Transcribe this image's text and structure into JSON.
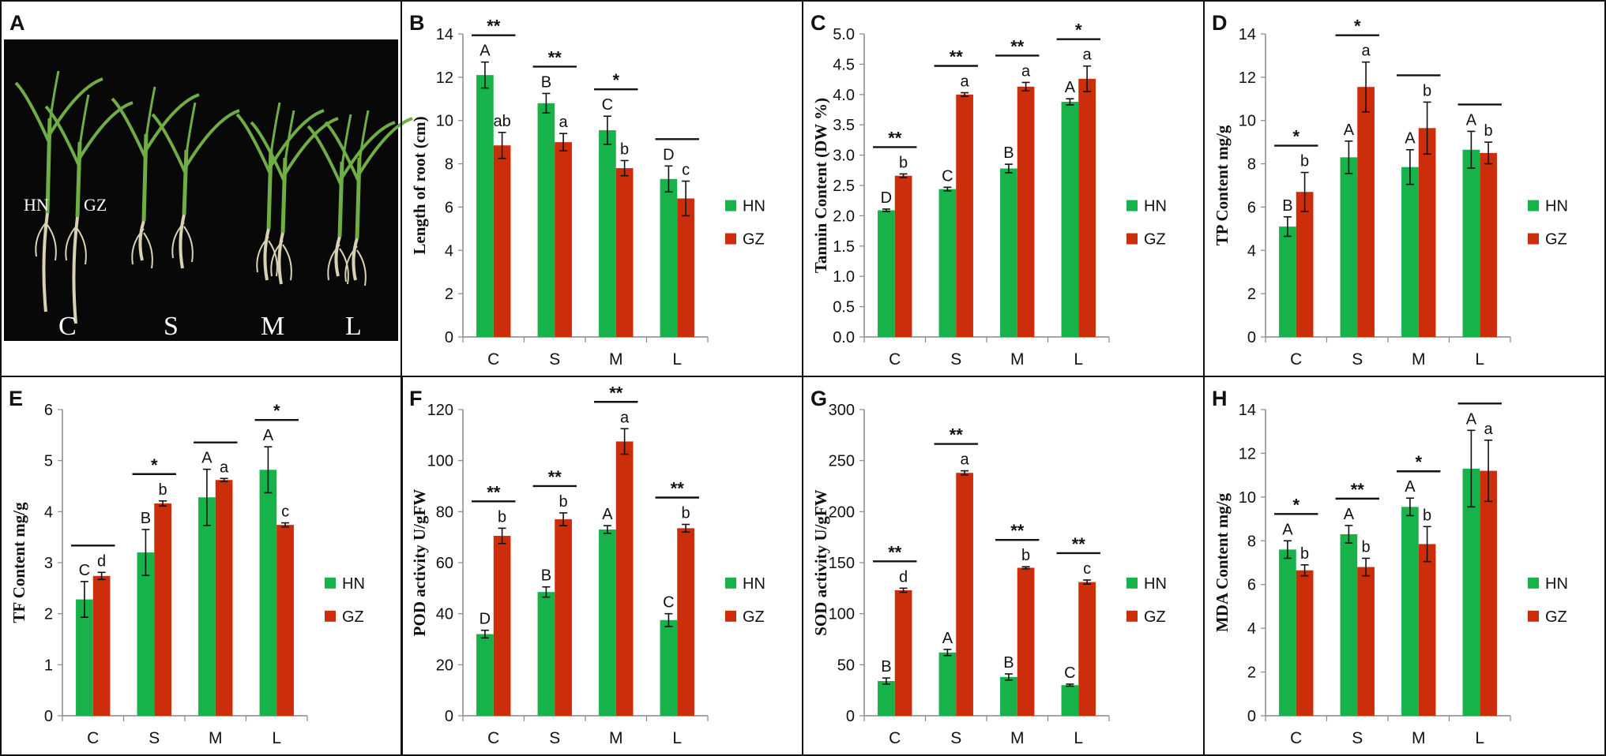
{
  "colors": {
    "hn": "#18b24b",
    "gz": "#cc2d0a",
    "photo_bg": "#080808",
    "leaf": "#6fae45",
    "root": "#d8d2b4"
  },
  "photo_panel": {
    "letter": "A",
    "labels": [
      "C",
      "S",
      "M",
      "L"
    ],
    "cultivars": [
      "HN",
      "GZ"
    ]
  },
  "legend": {
    "hn": "HN",
    "gz": "GZ"
  },
  "chart_data": [
    {
      "panel": "B",
      "type": "bar",
      "categories": [
        "C",
        "S",
        "M",
        "L"
      ],
      "ylabel": "Length of root (cm)",
      "ylim": [
        0,
        14
      ],
      "ytick_step": 2,
      "ytick_decimals": 0,
      "series": [
        {
          "name": "HN",
          "values": [
            12.1,
            10.8,
            9.55,
            7.3
          ],
          "errors": [
            0.6,
            0.45,
            0.65,
            0.6
          ],
          "letters": [
            "A",
            "B",
            "C",
            "D"
          ]
        },
        {
          "name": "GZ",
          "values": [
            8.85,
            9.0,
            7.8,
            6.4
          ],
          "errors": [
            0.6,
            0.4,
            0.35,
            0.8
          ],
          "letters": [
            "ab",
            "a",
            "b",
            "c"
          ]
        }
      ],
      "significance": [
        "**",
        "**",
        "*",
        ""
      ]
    },
    {
      "panel": "C",
      "type": "bar",
      "categories": [
        "C",
        "S",
        "M",
        "L"
      ],
      "ylabel": "Tannin Content (DW %)",
      "ylim": [
        0,
        5
      ],
      "ytick_step": 0.5,
      "ytick_decimals": 1,
      "series": [
        {
          "name": "HN",
          "values": [
            2.09,
            2.44,
            2.78,
            3.88
          ],
          "errors": [
            0.02,
            0.03,
            0.07,
            0.05
          ],
          "letters": [
            "D",
            "C",
            "B",
            "A"
          ]
        },
        {
          "name": "GZ",
          "values": [
            2.66,
            4.0,
            4.13,
            4.26
          ],
          "errors": [
            0.03,
            0.03,
            0.07,
            0.21
          ],
          "letters": [
            "b",
            "a",
            "a",
            "a"
          ]
        }
      ],
      "significance": [
        "**",
        "**",
        "**",
        "*"
      ]
    },
    {
      "panel": "D",
      "type": "bar",
      "categories": [
        "C",
        "S",
        "M",
        "L"
      ],
      "ylabel": "TP Content mg/g",
      "ylim": [
        0,
        14
      ],
      "ytick_step": 2,
      "ytick_decimals": 0,
      "series": [
        {
          "name": "HN",
          "values": [
            5.1,
            8.3,
            7.85,
            8.65
          ],
          "errors": [
            0.45,
            0.75,
            0.8,
            0.85
          ],
          "letters": [
            "B",
            "A",
            "A",
            "A"
          ]
        },
        {
          "name": "GZ",
          "values": [
            6.7,
            11.55,
            9.65,
            8.5
          ],
          "errors": [
            0.9,
            1.15,
            1.2,
            0.5
          ],
          "letters": [
            "b",
            "a",
            "b",
            "b"
          ]
        }
      ],
      "significance": [
        "*",
        "*",
        "",
        ""
      ]
    },
    {
      "panel": "E",
      "type": "bar",
      "categories": [
        "C",
        "S",
        "M",
        "L"
      ],
      "ylabel": "TF Content mg/g",
      "ylim": [
        0,
        6
      ],
      "ytick_step": 1,
      "ytick_decimals": 0,
      "series": [
        {
          "name": "HN",
          "values": [
            2.28,
            3.2,
            4.28,
            4.82
          ],
          "errors": [
            0.35,
            0.45,
            0.55,
            0.45
          ],
          "letters": [
            "C",
            "B",
            "A",
            "A"
          ]
        },
        {
          "name": "GZ",
          "values": [
            2.74,
            4.16,
            4.62,
            3.74
          ],
          "errors": [
            0.07,
            0.05,
            0.03,
            0.04
          ],
          "letters": [
            "d",
            "b",
            "a",
            "c"
          ]
        }
      ],
      "significance": [
        "",
        "*",
        "",
        "*"
      ]
    },
    {
      "panel": "F",
      "type": "bar",
      "categories": [
        "C",
        "S",
        "M",
        "L"
      ],
      "ylabel": "POD activity U/gFW",
      "ylim": [
        0,
        120
      ],
      "ytick_step": 20,
      "ytick_decimals": 0,
      "series": [
        {
          "name": "HN",
          "values": [
            32,
            48.5,
            73,
            37.5
          ],
          "errors": [
            1.5,
            2,
            1.5,
            2.5
          ],
          "letters": [
            "D",
            "B",
            "A",
            "C"
          ]
        },
        {
          "name": "GZ",
          "values": [
            70.5,
            77,
            107.5,
            73.5
          ],
          "errors": [
            3,
            2.5,
            5,
            1.5
          ],
          "letters": [
            "b",
            "b",
            "a",
            "b"
          ]
        }
      ],
      "significance": [
        "**",
        "**",
        "**",
        "**"
      ]
    },
    {
      "panel": "G",
      "type": "bar",
      "categories": [
        "C",
        "S",
        "M",
        "L"
      ],
      "ylabel": "SOD activity U/gFW",
      "ylim": [
        0,
        300
      ],
      "ytick_step": 50,
      "ytick_decimals": 0,
      "series": [
        {
          "name": "HN",
          "values": [
            34,
            62,
            38,
            30
          ],
          "errors": [
            3,
            3,
            3,
            1
          ],
          "letters": [
            "B",
            "A",
            "B",
            "C"
          ]
        },
        {
          "name": "GZ",
          "values": [
            123,
            238,
            145,
            131
          ],
          "errors": [
            2,
            2,
            1,
            2
          ],
          "letters": [
            "d",
            "a",
            "b",
            "c"
          ]
        }
      ],
      "significance": [
        "**",
        "**",
        "**",
        "**"
      ]
    },
    {
      "panel": "H",
      "type": "bar",
      "categories": [
        "C",
        "S",
        "M",
        "L"
      ],
      "ylabel": "MDA Content mg/g",
      "ylim": [
        0,
        14
      ],
      "ytick_step": 2,
      "ytick_decimals": 0,
      "series": [
        {
          "name": "HN",
          "values": [
            7.6,
            8.3,
            9.55,
            11.3
          ],
          "errors": [
            0.4,
            0.4,
            0.4,
            1.75
          ],
          "letters": [
            "A",
            "A",
            "A",
            "A"
          ]
        },
        {
          "name": "GZ",
          "values": [
            6.65,
            6.8,
            7.85,
            11.2
          ],
          "errors": [
            0.25,
            0.4,
            0.8,
            1.4
          ],
          "letters": [
            "b",
            "b",
            "b",
            "a"
          ]
        }
      ],
      "significance": [
        "*",
        "**",
        "*",
        ""
      ]
    }
  ]
}
